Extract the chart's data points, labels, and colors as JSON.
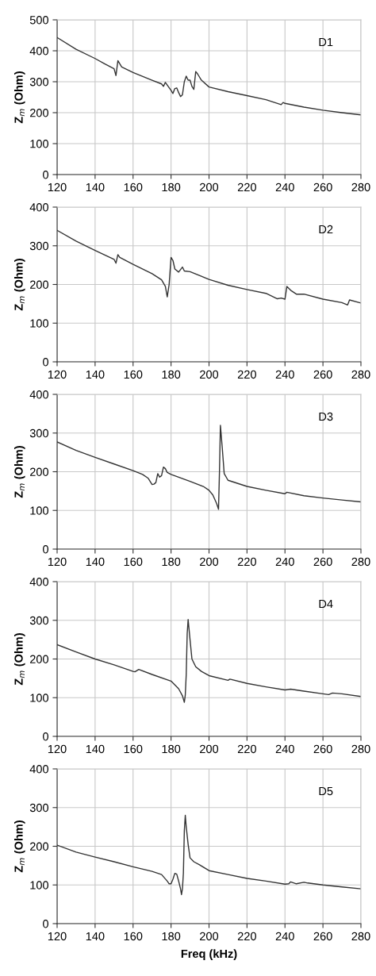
{
  "chart_data": [
    {
      "type": "line",
      "ylabel": "Z$_{m}$ (Ohm)",
      "annotations": [
        "D1"
      ],
      "xlim": [
        120,
        280
      ],
      "xticks": [
        120,
        140,
        160,
        180,
        200,
        220,
        240,
        260,
        280
      ],
      "ylim": [
        0,
        500
      ],
      "yticks": [
        0,
        100,
        200,
        300,
        400,
        500
      ],
      "grid": true,
      "x": [
        120,
        130,
        140,
        145,
        150,
        151,
        152,
        154,
        160,
        170,
        175,
        176,
        177,
        180,
        181,
        182,
        183,
        184,
        185,
        186,
        187,
        188,
        189,
        190,
        191,
        192,
        193,
        194,
        196,
        200,
        210,
        220,
        230,
        238,
        239,
        240,
        250,
        260,
        270,
        280
      ],
      "series": [
        {
          "color": "#333333",
          "values": [
            443,
            405,
            375,
            358,
            342,
            320,
            368,
            348,
            330,
            305,
            293,
            285,
            298,
            272,
            262,
            278,
            280,
            265,
            252,
            258,
            300,
            318,
            305,
            305,
            285,
            275,
            333,
            325,
            305,
            283,
            268,
            255,
            242,
            226,
            233,
            230,
            218,
            208,
            200,
            193
          ]
        }
      ]
    },
    {
      "type": "line",
      "ylabel": "Z$_{m}$ (Ohm)",
      "annotations": [
        "D2"
      ],
      "xlim": [
        120,
        280
      ],
      "xticks": [
        120,
        140,
        160,
        180,
        200,
        220,
        240,
        260,
        280
      ],
      "ylim": [
        0,
        400
      ],
      "yticks": [
        0,
        100,
        200,
        300,
        400
      ],
      "grid": true,
      "x": [
        120,
        130,
        140,
        150,
        151,
        152,
        153,
        160,
        170,
        175,
        177,
        178,
        179,
        180,
        181,
        182,
        184,
        186,
        187,
        190,
        200,
        210,
        220,
        230,
        236,
        238,
        240,
        241,
        243,
        246,
        250,
        260,
        270,
        273,
        274,
        280
      ],
      "series": [
        {
          "color": "#333333",
          "values": [
            340,
            312,
            288,
            265,
            255,
            277,
            270,
            252,
            228,
            212,
            195,
            168,
            200,
            270,
            262,
            240,
            232,
            245,
            235,
            233,
            213,
            198,
            187,
            177,
            163,
            165,
            162,
            195,
            185,
            175,
            175,
            162,
            153,
            147,
            160,
            152
          ]
        }
      ]
    },
    {
      "type": "line",
      "ylabel": "Z$_{m}$ (Ohm)",
      "annotations": [
        "D3"
      ],
      "xlim": [
        120,
        280
      ],
      "xticks": [
        120,
        140,
        160,
        180,
        200,
        220,
        240,
        260,
        280
      ],
      "ylim": [
        0,
        400
      ],
      "yticks": [
        0,
        100,
        200,
        300,
        400
      ],
      "grid": true,
      "x": [
        120,
        130,
        140,
        150,
        160,
        165,
        168,
        170,
        171,
        172,
        173,
        174,
        175,
        176,
        177,
        178,
        180,
        190,
        197,
        200,
        202,
        204,
        205,
        205.5,
        206,
        207,
        208,
        210,
        220,
        230,
        240,
        241,
        250,
        260,
        270,
        280
      ],
      "series": [
        {
          "color": "#333333",
          "values": [
            277,
            255,
            237,
            220,
            203,
            193,
            183,
            167,
            168,
            172,
            195,
            186,
            190,
            212,
            208,
            198,
            193,
            175,
            162,
            152,
            140,
            118,
            103,
            200,
            320,
            260,
            195,
            178,
            162,
            152,
            143,
            147,
            138,
            132,
            127,
            122
          ]
        }
      ]
    },
    {
      "type": "line",
      "ylabel": "Z$_{m}$ (Ohm)",
      "annotations": [
        "D4"
      ],
      "xlim": [
        120,
        280
      ],
      "xticks": [
        120,
        140,
        160,
        180,
        200,
        220,
        240,
        260,
        280
      ],
      "ylim": [
        0,
        400
      ],
      "yticks": [
        0,
        100,
        200,
        300,
        400
      ],
      "grid": true,
      "x": [
        120,
        130,
        140,
        150,
        160,
        161,
        163,
        170,
        180,
        184,
        186,
        187,
        187.5,
        188,
        188.5,
        189,
        190,
        191,
        193,
        196,
        200,
        210,
        211,
        220,
        230,
        240,
        243,
        250,
        260,
        263,
        265,
        270,
        280
      ],
      "series": [
        {
          "color": "#333333",
          "values": [
            237,
            218,
            200,
            185,
            168,
            167,
            173,
            160,
            143,
            123,
            105,
            88,
            107,
            160,
            265,
            302,
            250,
            200,
            180,
            168,
            157,
            145,
            148,
            137,
            128,
            120,
            122,
            117,
            110,
            108,
            112,
            110,
            103
          ]
        }
      ]
    },
    {
      "type": "line",
      "ylabel": "Z$_{m}$ (Ohm)",
      "xlabel": "Freq (kHz)",
      "annotations": [
        "D5"
      ],
      "xlim": [
        120,
        280
      ],
      "xticks": [
        120,
        140,
        160,
        180,
        200,
        220,
        240,
        260,
        280
      ],
      "ylim": [
        0,
        400
      ],
      "yticks": [
        0,
        100,
        200,
        300,
        400
      ],
      "grid": true,
      "x": [
        120,
        130,
        140,
        150,
        160,
        170,
        175,
        178,
        179,
        180,
        181,
        182,
        183,
        184,
        185,
        185.5,
        186,
        186.5,
        187,
        187.5,
        188,
        189,
        190,
        192,
        195,
        200,
        210,
        220,
        230,
        240,
        242,
        243,
        246,
        250,
        252,
        260,
        270,
        280
      ],
      "series": [
        {
          "color": "#333333",
          "values": [
            203,
            185,
            172,
            160,
            147,
            135,
            127,
            110,
            103,
            103,
            115,
            130,
            128,
            110,
            90,
            75,
            90,
            130,
            240,
            280,
            250,
            205,
            170,
            160,
            152,
            137,
            127,
            117,
            110,
            102,
            103,
            108,
            103,
            107,
            105,
            100,
            95,
            90
          ]
        }
      ]
    }
  ]
}
